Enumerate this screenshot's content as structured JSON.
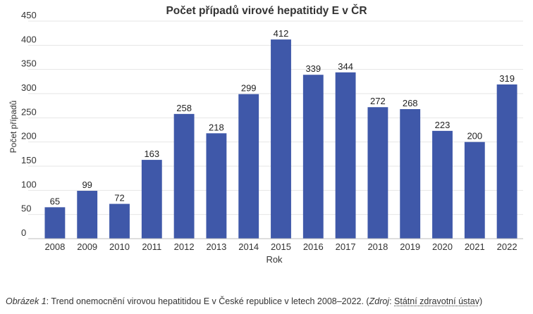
{
  "chart_data": {
    "type": "bar",
    "title": "Počet případů virové hepatitidy E v ČR",
    "xlabel": "Rok",
    "ylabel": "Počet případů",
    "categories": [
      "2008",
      "2009",
      "2010",
      "2011",
      "2012",
      "2013",
      "2014",
      "2015",
      "2016",
      "2017",
      "2018",
      "2019",
      "2020",
      "2021",
      "2022"
    ],
    "values": [
      65,
      99,
      72,
      163,
      258,
      218,
      299,
      412,
      339,
      344,
      272,
      268,
      223,
      200,
      319
    ],
    "ylim": [
      0,
      450
    ],
    "yticks": [
      0,
      50,
      100,
      150,
      200,
      250,
      300,
      350,
      400,
      450
    ],
    "grid": true,
    "data_labels": true,
    "colors": {
      "bar": "#3f58a9",
      "grid": "#e6e6e6",
      "axis": "#bdbdbd"
    }
  },
  "caption": {
    "label": "Obrázek 1",
    "text": ": Trend onemocnění virovou hepatitidou E v České republice v letech 2008–2022. (",
    "source_label": "Zdroj",
    "source_sep": ": ",
    "source": "Státní zdravotní ústav",
    "close": ")"
  }
}
